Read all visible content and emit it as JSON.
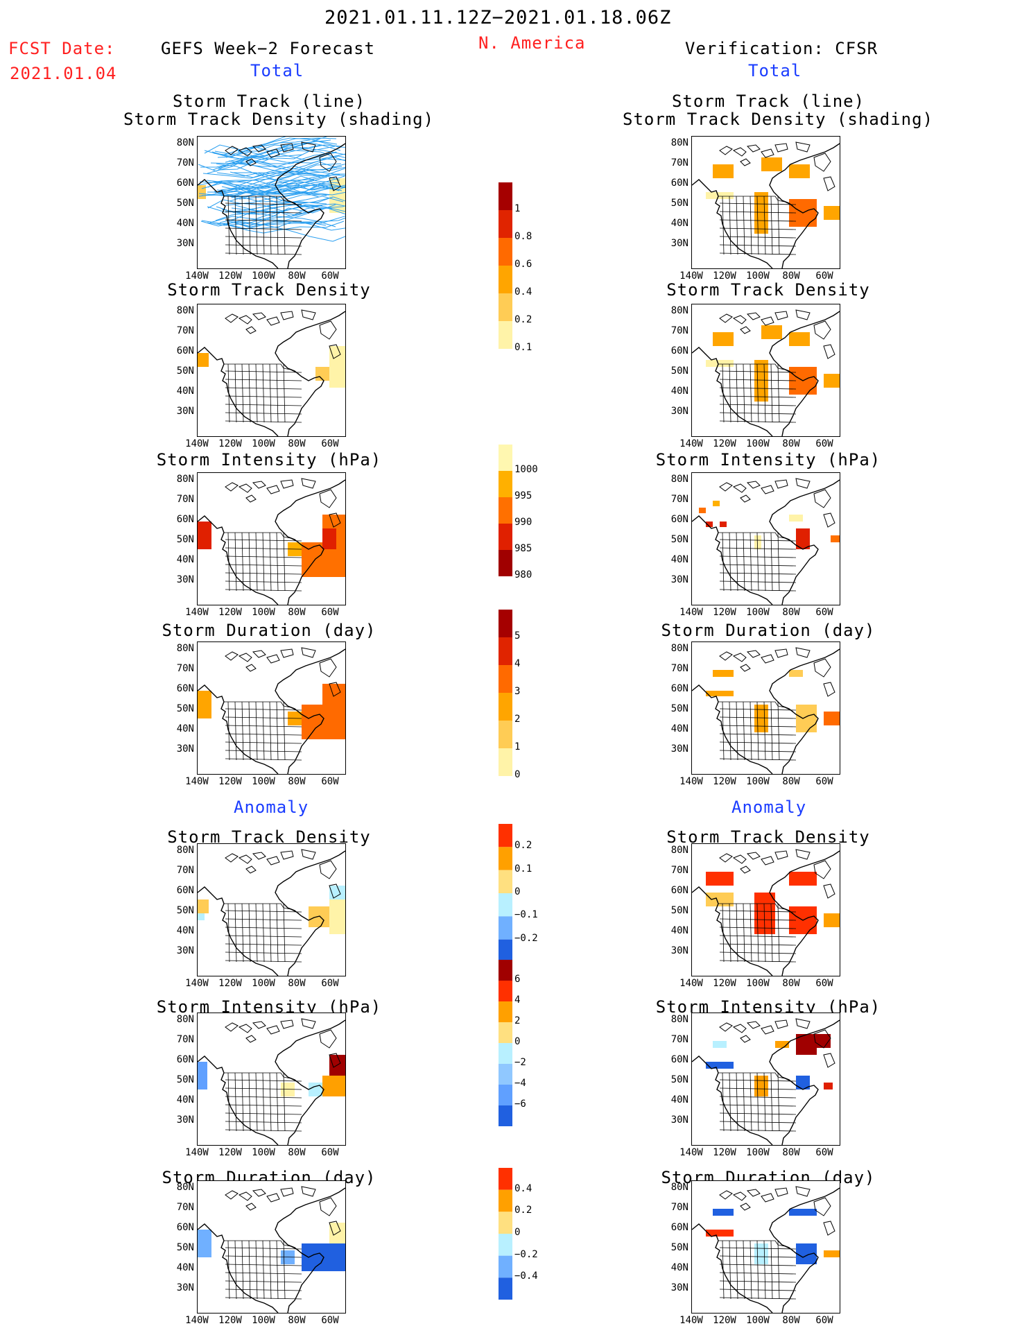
{
  "header": {
    "period": "2021.01.11.12Z−2021.01.18.06Z",
    "region": "N. America",
    "fcst_label": "FCST Date:",
    "fcst_date": "2021.01.04",
    "left_title": "GEFS Week−2 Forecast",
    "right_title": "Verification: CFSR"
  },
  "sections": {
    "total_label": "Total",
    "anomaly_label": "Anomaly"
  },
  "panel_titles": {
    "track_line": "Storm Track (line)",
    "track_shading": "Storm Track Density (shading)",
    "density": "Storm Track Density",
    "intensity": "Storm Intensity (hPa)",
    "duration": "Storm Duration (day)"
  },
  "axes": {
    "lat_labels": [
      "80N",
      "70N",
      "60N",
      "50N",
      "40N",
      "30N"
    ],
    "lon_labels": [
      "140W",
      "120W",
      "100W",
      "80W",
      "60W"
    ]
  },
  "colorbars": [
    {
      "name": "density-total",
      "labels": [
        "1",
        "0.8",
        "0.6",
        "0.4",
        "0.2",
        "0.1"
      ],
      "colors": [
        "#a50000",
        "#e02400",
        "#ff6a00",
        "#ffa500",
        "#ffcc55",
        "#fff3a8"
      ]
    },
    {
      "name": "intensity-total",
      "labels": [
        "1000",
        "995",
        "990",
        "985",
        "980"
      ],
      "colors": [
        "#fff7b0",
        "#ffb000",
        "#ff7000",
        "#e02000",
        "#a00000"
      ]
    },
    {
      "name": "duration-total",
      "labels": [
        "5",
        "4",
        "3",
        "2",
        "1",
        "0"
      ],
      "colors": [
        "#a50000",
        "#e02400",
        "#ff6a00",
        "#ffa500",
        "#ffcc55",
        "#fff3a8"
      ]
    },
    {
      "name": "density-anom",
      "labels": [
        "0.2",
        "0.1",
        "0",
        "−0.1",
        "−0.2"
      ],
      "colors": [
        "#ff3000",
        "#ffa000",
        "#ffe080",
        "#b8f0ff",
        "#70b0ff",
        "#2060e0"
      ]
    },
    {
      "name": "intensity-anom",
      "labels": [
        "6",
        "4",
        "2",
        "0",
        "−2",
        "−4",
        "−6"
      ],
      "colors": [
        "#a00000",
        "#ff3000",
        "#ffa000",
        "#ffe080",
        "#b8f0ff",
        "#90c8ff",
        "#60a0ff",
        "#2060e0"
      ]
    },
    {
      "name": "duration-anom",
      "labels": [
        "0.4",
        "0.2",
        "0",
        "−0.2",
        "−0.4"
      ],
      "colors": [
        "#ff3000",
        "#ffa000",
        "#ffe080",
        "#b8f0ff",
        "#70b0ff",
        "#2060e0"
      ]
    }
  ]
}
